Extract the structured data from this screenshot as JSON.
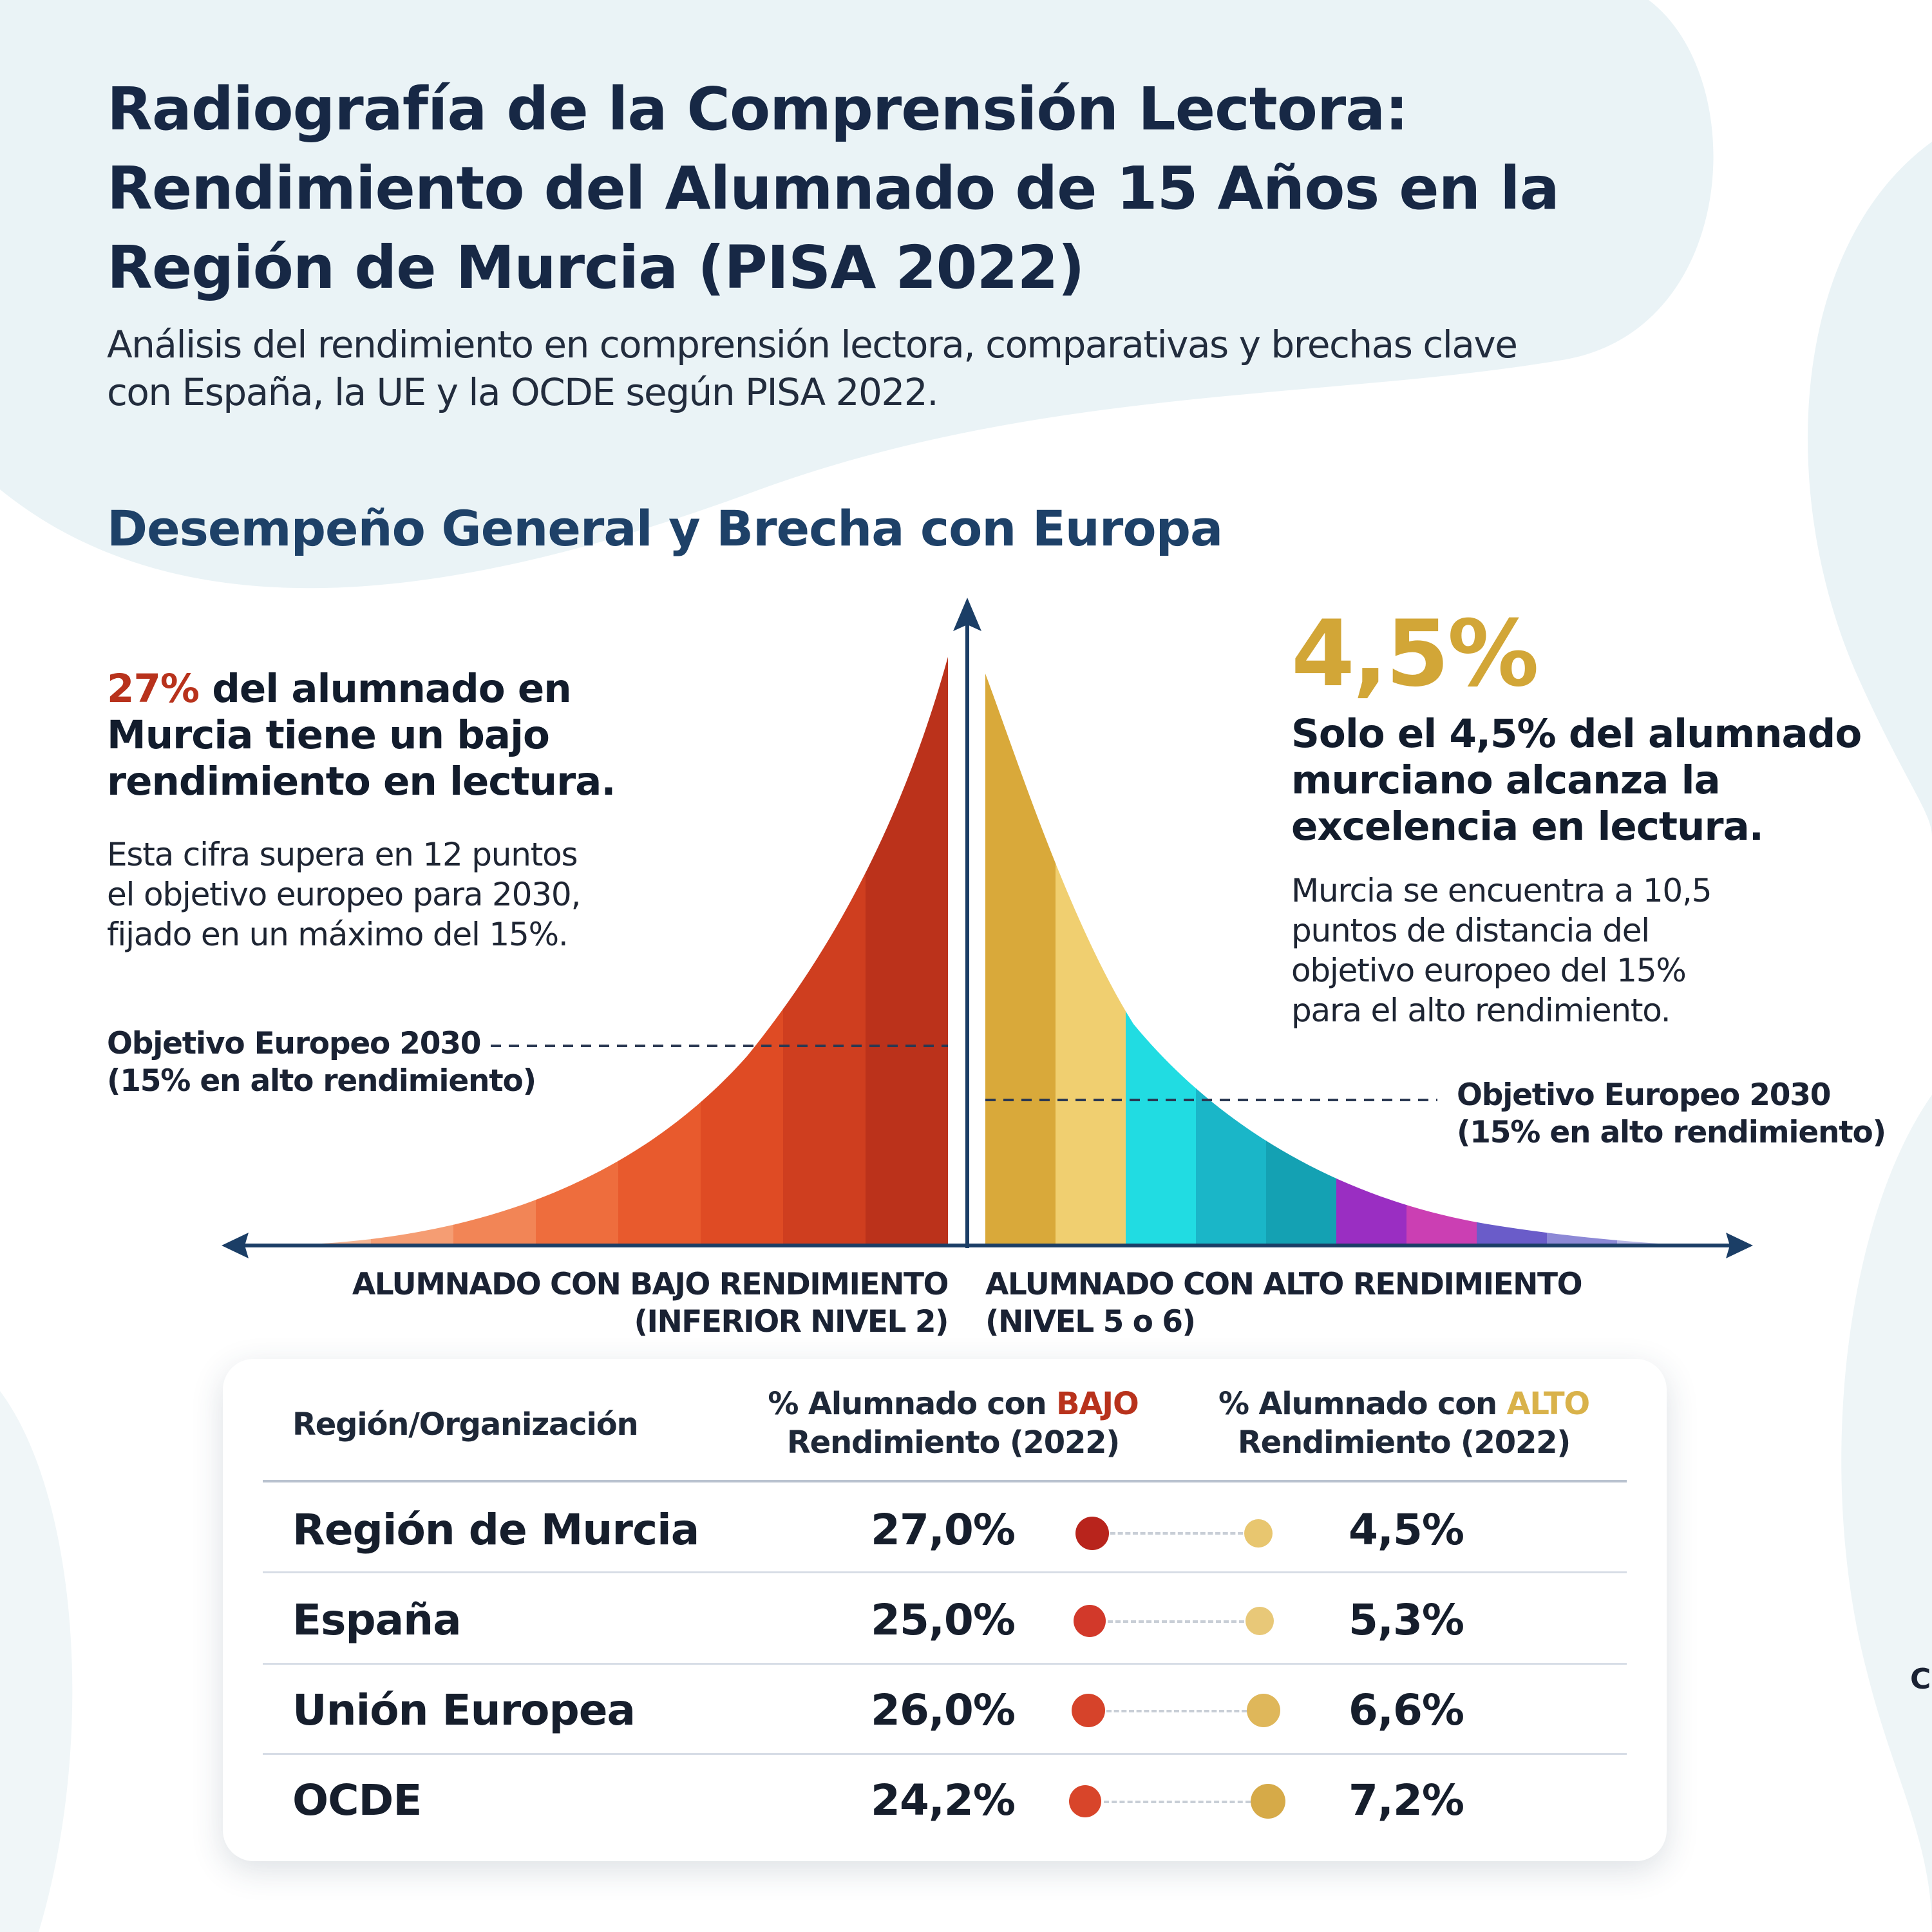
{
  "header": {
    "title_lines": [
      "Radiografía de la Comprensión Lectora:",
      "Rendimiento del Alumnado de 15 Años en la",
      "Región de Murcia (PISA 2022)"
    ],
    "subtitle_lines": [
      "Análisis del rendimiento en comprensión lectora, comparativas y brechas clave",
      "con España, la UE y la OCDE según PISA 2022."
    ]
  },
  "section": {
    "heading": "Desempeño General y Brecha con Europa"
  },
  "left_panel": {
    "stat": "27%",
    "headline_lines": [
      " del alumnado en",
      "Murcia tiene un bajo",
      "rendimiento en lectura."
    ],
    "body_lines": [
      "Esta cifra supera en 12 puntos",
      "el objetivo europeo para 2030,",
      "fijado en un máximo del 15%."
    ],
    "objective_lines": [
      "Objetivo Europeo 2030",
      "(15% en alto rendimiento)"
    ]
  },
  "right_panel": {
    "stat": "4,5%",
    "headline_lines": [
      "Solo el 4,5% del alumnado",
      "murciano alcanza la",
      "excelencia en lectura."
    ],
    "body_lines": [
      "Murcia se encuentra a 10,5",
      "puntos de distancia del",
      "objetivo europeo del 15%",
      "para el alto rendimiento."
    ],
    "objective_lines": [
      "Objetivo Europeo 2030",
      "(15% en alto rendimiento)"
    ]
  },
  "axis": {
    "left_label_lines": [
      "ALUMNADO CON BAJO RENDIMIENTO",
      "(INFERIOR NIVEL 2)"
    ],
    "right_label_lines": [
      "ALUMNADO CON ALTO RENDIMIENTO",
      "(NIVEL 5 o 6)"
    ]
  },
  "colors": {
    "low_palette": [
      "#f7cdb3",
      "#f6b592",
      "#f59d73",
      "#f28556",
      "#ee6d3d",
      "#e85a2d",
      "#df4b24",
      "#cf3e1f",
      "#bb321b"
    ],
    "high_palette": [
      "#d9a93a",
      "#f0cf70",
      "#21dce2",
      "#1ab6c8",
      "#14a1b3",
      "#9a2ec2",
      "#cb3fb3",
      "#6a5cc9",
      "#8d89d6",
      "#b9b7e6"
    ],
    "low_accent": "#b8321c",
    "high_accent": "#d9b24a",
    "navy": "#1b3e66"
  },
  "table": {
    "headers": {
      "region": "Región/Organización",
      "low_prefix": "% Alumnado con ",
      "low_highlight": "BAJO",
      "low_suffix": "Rendimiento (2022)",
      "high_prefix": "% Alumnado con ",
      "high_highlight": "ALTO",
      "high_suffix": "Rendimiento (2022)"
    },
    "rows": [
      {
        "name": "Región de Murcia",
        "low": "27,0%",
        "high": "4,5%",
        "low_color": "#b8241c",
        "high_color": "#e8c66f"
      },
      {
        "name": "España",
        "low": "25,0%",
        "high": "5,3%",
        "low_color": "#d2392a",
        "high_color": "#e8c878"
      },
      {
        "name": "Unión Europea",
        "low": "26,0%",
        "high": "6,6%",
        "low_color": "#d6432a",
        "high_color": "#dfb75a"
      },
      {
        "name": "OCDE",
        "low": "24,2%",
        "high": "7,2%",
        "low_color": "#d8452a",
        "high_color": "#d6aa48"
      }
    ]
  },
  "edge_glyph": "C"
}
